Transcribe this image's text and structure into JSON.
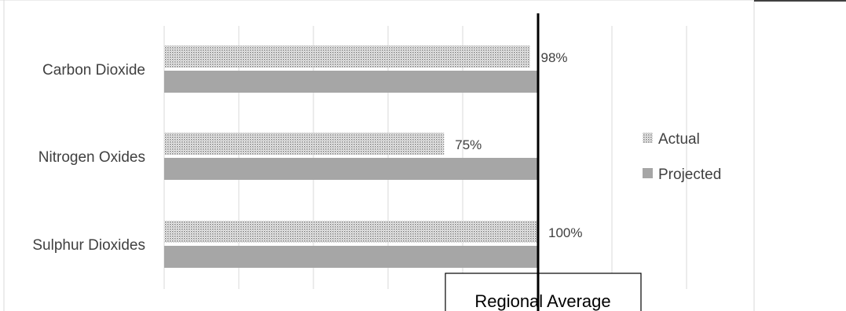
{
  "chart_data": {
    "type": "bar",
    "orientation": "horizontal",
    "categories": [
      "Carbon Dioxide",
      "Nitrogen Oxides",
      "Sulphur Dioxides"
    ],
    "series": [
      {
        "name": "Actual",
        "values": [
          98,
          75,
          100
        ],
        "data_labels": [
          "98%",
          "75%",
          "100%"
        ],
        "pattern": "dotted",
        "color": "#a6a6a6"
      },
      {
        "name": "Projected",
        "values": [
          100,
          100,
          100
        ],
        "pattern": "solid",
        "color": "#a6a6a6"
      }
    ],
    "xlim": [
      0,
      160
    ],
    "x_gridline_step": 20,
    "reference_line": {
      "value": 100,
      "label": "Regional Average",
      "color": "#000000"
    },
    "legend": {
      "placement": "right",
      "entries": [
        "Actual",
        "Projected"
      ]
    },
    "grid": true,
    "title": "",
    "xlabel": "",
    "ylabel": ""
  }
}
